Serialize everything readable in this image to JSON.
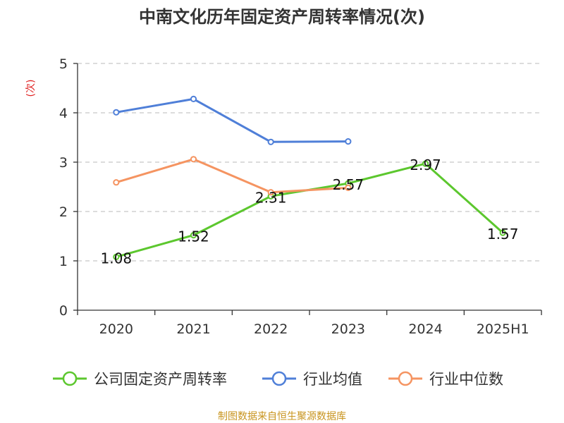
{
  "chart_data": {
    "type": "line",
    "title": "中南文化历年固定资产周转率情况(次)",
    "ylabel": "(次)",
    "xlabel": "",
    "categories": [
      "2020",
      "2021",
      "2022",
      "2023",
      "2024",
      "2025H1"
    ],
    "ylim": [
      0,
      5
    ],
    "yticks": [
      "0",
      "1",
      "2",
      "3",
      "4",
      "5"
    ],
    "grid": true,
    "legend_position": "bottom",
    "series": [
      {
        "name": "公司固定资产周转率",
        "color": "#5cc72e",
        "values": [
          1.08,
          1.52,
          2.31,
          2.57,
          2.97,
          1.57
        ],
        "labels": [
          "1.08",
          "1.52",
          "2.31",
          "2.57",
          "2.97",
          "1.57"
        ]
      },
      {
        "name": "行业均值",
        "color": "#4f7fd8",
        "values": [
          4.01,
          4.28,
          3.41,
          3.42,
          null,
          null
        ]
      },
      {
        "name": "行业中位数",
        "color": "#f59461",
        "values": [
          2.59,
          3.06,
          2.39,
          2.48,
          null,
          null
        ]
      }
    ],
    "source": "制图数据来自恒生聚源数据库"
  },
  "colors": {
    "title": "#333333",
    "ylabel": "#e02020",
    "source": "#c8941e",
    "grid": "#c8c8c8"
  }
}
